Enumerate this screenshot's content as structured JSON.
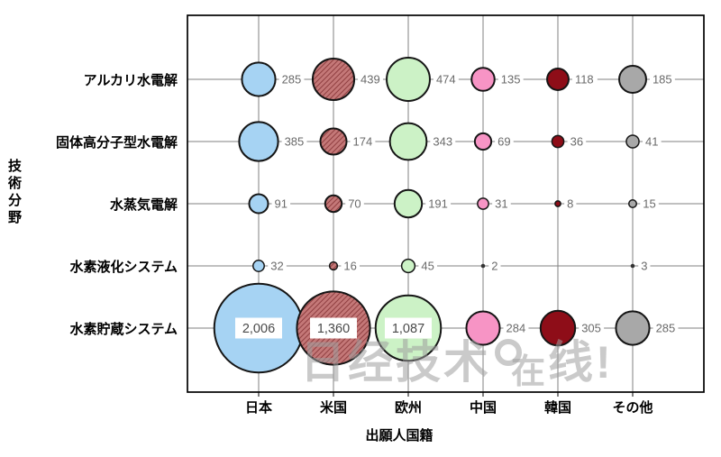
{
  "chart_data": {
    "type": "scatter",
    "subtype": "bubble-matrix",
    "title": "",
    "xlabel": "出願人国籍",
    "ylabel": "技術分野",
    "x_categories": [
      "日本",
      "米国",
      "欧州",
      "中国",
      "韓国",
      "その他"
    ],
    "y_categories": [
      "アルカリ水電解",
      "固体高分子型水電解",
      "水蒸気電解",
      "水素液化システム",
      "水素貯蔵システム"
    ],
    "series": [
      {
        "name": "アルカリ水電解",
        "values": [
          285,
          439,
          474,
          135,
          118,
          185
        ]
      },
      {
        "name": "固体高分子型水電解",
        "values": [
          385,
          174,
          343,
          69,
          36,
          41
        ]
      },
      {
        "name": "水蒸気電解",
        "values": [
          91,
          70,
          191,
          31,
          8,
          15
        ]
      },
      {
        "name": "水素液化システム",
        "values": [
          32,
          16,
          45,
          2,
          null,
          3
        ]
      },
      {
        "name": "水素貯蔵システム",
        "values": [
          2006,
          1360,
          1087,
          284,
          305,
          285
        ]
      }
    ],
    "column_styles": [
      {
        "name": "日本",
        "fill": "#A6D3F3",
        "hatch": false
      },
      {
        "name": "米国",
        "fill": "#C47878",
        "hatch": true,
        "hatch_color": "#8F3E40"
      },
      {
        "name": "欧州",
        "fill": "#CCF2C6",
        "hatch": false
      },
      {
        "name": "中国",
        "fill": "#F794C5",
        "hatch": false
      },
      {
        "name": "韓国",
        "fill": "#8E0D18",
        "hatch": false
      },
      {
        "name": "その他",
        "fill": "#A8A8A8",
        "hatch": false
      }
    ],
    "outline_color": "#151515",
    "grid": true,
    "grid_color": "#808080",
    "border_color": "#000000",
    "value_label_color": "#6a6a6a",
    "big_value_box_color": "#ffffff",
    "big_value_text_color": "#4a4a4a"
  },
  "watermark": {
    "text_start": "日经技术",
    "text_mid": "在",
    "text_end": "线!",
    "color": "#c6c6c6"
  }
}
